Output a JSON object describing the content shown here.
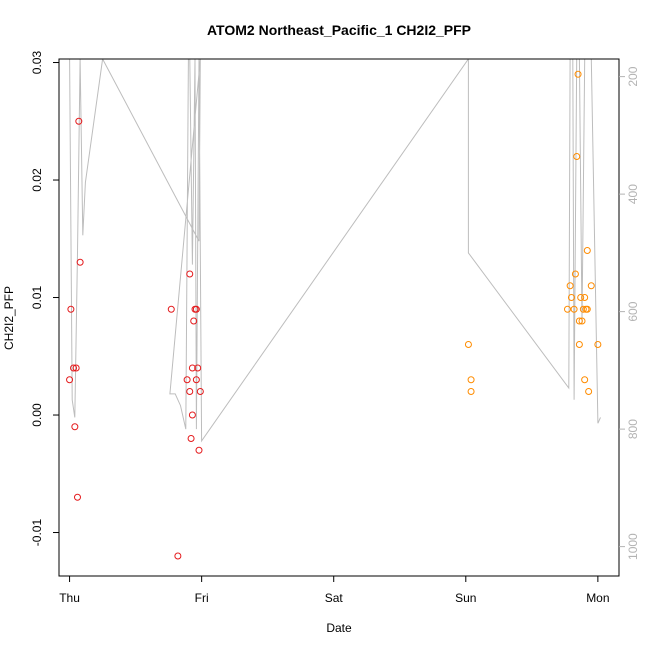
{
  "chart_data": {
    "type": "scatter",
    "title": "ATOM2 Northeast_Pacific_1 CH2I2_PFP",
    "xlabel": "Date",
    "ylabel": "CH2I2_PFP",
    "x_ticks": [
      "Thu",
      "Fri",
      "Sat",
      "Sun",
      "Mon"
    ],
    "xlim": [
      -0.08,
      4.16
    ],
    "ylim": [
      -0.0137,
      0.0303
    ],
    "y_ticks": [
      "-0.01",
      "0.00",
      "0.01",
      "0.02",
      "0.03"
    ],
    "y_tick_values": [
      -0.01,
      0.0,
      0.01,
      0.02,
      0.03
    ],
    "y2_ticks": [
      "200",
      "400",
      "600",
      "800",
      "1000"
    ],
    "y2_tick_values": [
      200,
      400,
      600,
      800,
      1000
    ],
    "y2lim": [
      1050,
      170
    ],
    "grid": false,
    "series": [
      {
        "color": "#e41a1c",
        "points": [
          [
            0.0,
            0.003
          ],
          [
            0.01,
            0.009
          ],
          [
            0.03,
            0.004
          ],
          [
            0.04,
            -0.001
          ],
          [
            0.05,
            0.004
          ],
          [
            0.06,
            -0.007
          ],
          [
            0.07,
            0.025
          ],
          [
            0.08,
            0.013
          ],
          [
            0.77,
            0.009
          ],
          [
            0.82,
            -0.012
          ],
          [
            0.89,
            0.003
          ],
          [
            0.91,
            0.012
          ],
          [
            0.91,
            0.002
          ],
          [
            0.92,
            -0.002
          ],
          [
            0.93,
            0.0
          ],
          [
            0.93,
            0.004
          ],
          [
            0.94,
            0.008
          ],
          [
            0.95,
            0.009
          ],
          [
            0.96,
            0.009
          ],
          [
            0.96,
            0.003
          ],
          [
            0.97,
            0.004
          ],
          [
            0.98,
            -0.003
          ],
          [
            0.99,
            0.002
          ]
        ]
      },
      {
        "color": "#ff8c00",
        "points": [
          [
            3.02,
            0.006
          ],
          [
            3.04,
            0.003
          ],
          [
            3.04,
            0.002
          ],
          [
            3.77,
            0.009
          ],
          [
            3.79,
            0.011
          ],
          [
            3.8,
            0.01
          ],
          [
            3.82,
            0.009
          ],
          [
            3.83,
            0.012
          ],
          [
            3.84,
            0.022
          ],
          [
            3.85,
            0.029
          ],
          [
            3.86,
            0.008
          ],
          [
            3.86,
            0.006
          ],
          [
            3.87,
            0.01
          ],
          [
            3.88,
            0.008
          ],
          [
            3.89,
            0.009
          ],
          [
            3.9,
            0.003
          ],
          [
            3.9,
            0.01
          ],
          [
            3.91,
            0.009
          ],
          [
            3.92,
            0.014
          ],
          [
            3.92,
            0.009
          ],
          [
            3.93,
            0.002
          ],
          [
            3.95,
            0.011
          ],
          [
            4.0,
            0.006
          ]
        ]
      }
    ],
    "secondary_line": {
      "color": "#bdbdbd",
      "points": [
        [
          0.0,
          170
        ],
        [
          0.02,
          750
        ],
        [
          0.04,
          780
        ],
        [
          0.06,
          500
        ],
        [
          0.08,
          170
        ],
        [
          0.1,
          470
        ],
        [
          0.12,
          380
        ],
        [
          0.25,
          170
        ],
        [
          0.98,
          480
        ],
        [
          0.99,
          170
        ],
        [
          0.76,
          740
        ],
        [
          0.8,
          740
        ],
        [
          0.84,
          760
        ],
        [
          0.88,
          800
        ],
        [
          0.9,
          170
        ],
        [
          0.91,
          170
        ],
        [
          0.93,
          520
        ],
        [
          0.95,
          170
        ],
        [
          0.96,
          800
        ],
        [
          0.98,
          170
        ],
        [
          1.0,
          820
        ],
        [
          3.02,
          170
        ],
        [
          3.02,
          500
        ],
        [
          3.78,
          730
        ],
        [
          3.79,
          170
        ],
        [
          3.81,
          170
        ],
        [
          3.82,
          750
        ],
        [
          3.84,
          170
        ],
        [
          3.86,
          170
        ],
        [
          3.88,
          620
        ],
        [
          3.9,
          170
        ],
        [
          3.92,
          170
        ],
        [
          3.95,
          170
        ],
        [
          4.0,
          790
        ],
        [
          4.02,
          780
        ]
      ]
    }
  }
}
